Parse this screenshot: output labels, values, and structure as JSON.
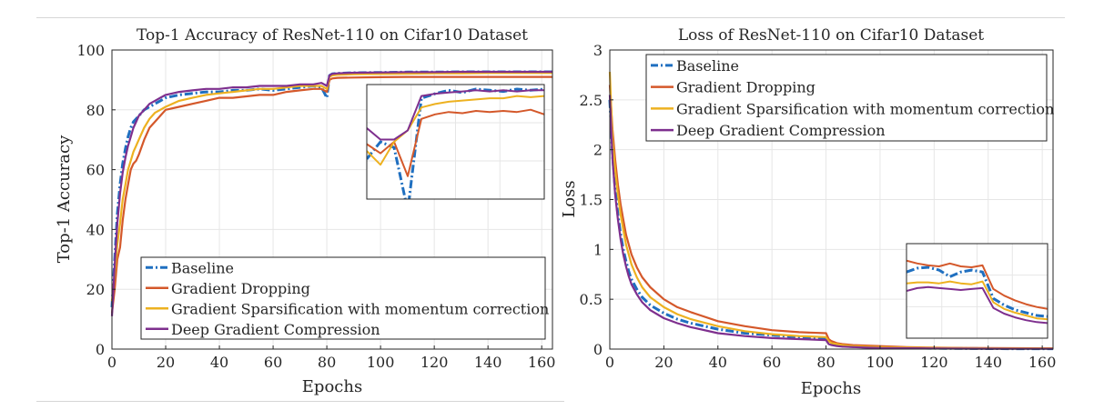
{
  "chart_data": [
    {
      "type": "line",
      "title": "Top-1 Accuracy of ResNet-110 on Cifar10 Dataset",
      "xlabel": "Epochs",
      "ylabel": "Top-1 Accuracy",
      "xlim": [
        0,
        164
      ],
      "ylim": [
        0,
        100
      ],
      "xticks": [
        "0",
        "20",
        "40",
        "60",
        "80",
        "100",
        "120",
        "140",
        "160"
      ],
      "yticks": [
        "0",
        "20",
        "40",
        "60",
        "80",
        "100"
      ],
      "grid": true,
      "legend_position": "bottom-right",
      "inset": true,
      "series": [
        {
          "name": "Baseline",
          "color": "#1f6fc0",
          "dash": true,
          "x": [
            0,
            1,
            2,
            3,
            4,
            5,
            6,
            7,
            8,
            9,
            10,
            12,
            14,
            16,
            18,
            20,
            25,
            30,
            35,
            40,
            45,
            50,
            55,
            60,
            65,
            70,
            75,
            78,
            80,
            81,
            82,
            84,
            90,
            100,
            110,
            120,
            130,
            140,
            150,
            160,
            164
          ],
          "y": [
            14,
            30,
            45,
            55,
            62,
            67,
            71,
            74,
            76,
            77,
            78,
            80,
            81,
            82,
            83,
            84,
            85,
            85.5,
            86,
            86,
            86.5,
            86.5,
            87,
            86.5,
            87,
            87.5,
            88,
            87.5,
            84,
            91.5,
            92,
            92.2,
            92.4,
            92.5,
            92.6,
            92.6,
            92.7,
            92.7,
            92.7,
            92.7,
            92.7
          ]
        },
        {
          "name": "Gradient Dropping",
          "color": "#d4582a",
          "dash": false,
          "x": [
            0,
            1,
            2,
            3,
            4,
            5,
            6,
            7,
            8,
            9,
            10,
            12,
            14,
            16,
            18,
            20,
            25,
            30,
            35,
            40,
            45,
            50,
            55,
            60,
            65,
            70,
            75,
            78,
            80,
            81,
            82,
            84,
            90,
            100,
            110,
            120,
            130,
            140,
            150,
            160,
            164
          ],
          "y": [
            12,
            20,
            30,
            34,
            43,
            50,
            55,
            60,
            62,
            63,
            65,
            70,
            74,
            76,
            78,
            80,
            81,
            82,
            83,
            84,
            84,
            84.5,
            85,
            85,
            86,
            86.5,
            87,
            87,
            86,
            90,
            90.5,
            90.7,
            90.8,
            90.9,
            91,
            91,
            91,
            91,
            91,
            91,
            91
          ]
        },
        {
          "name": "Gradient Sparsification with momentum correction",
          "color": "#edb120",
          "dash": false,
          "x": [
            0,
            1,
            2,
            3,
            4,
            5,
            6,
            7,
            8,
            9,
            10,
            12,
            14,
            16,
            18,
            20,
            25,
            30,
            35,
            40,
            45,
            50,
            55,
            60,
            65,
            70,
            75,
            78,
            80,
            81,
            82,
            84,
            90,
            100,
            110,
            120,
            130,
            140,
            150,
            160,
            164
          ],
          "y": [
            16,
            25,
            35,
            42,
            50,
            55,
            60,
            63,
            66,
            68,
            70,
            74,
            77,
            79,
            80,
            81,
            83,
            84,
            85,
            85.5,
            86,
            86.5,
            87,
            87,
            87.5,
            88,
            88,
            88,
            87,
            91,
            91.5,
            91.7,
            91.9,
            92,
            92.1,
            92.2,
            92.2,
            92.3,
            92.3,
            92.3,
            92.3
          ]
        },
        {
          "name": "Deep Gradient Compression",
          "color": "#7e2f8e",
          "dash": false,
          "x": [
            0,
            1,
            2,
            3,
            4,
            5,
            6,
            7,
            8,
            9,
            10,
            12,
            14,
            16,
            18,
            20,
            25,
            30,
            35,
            40,
            45,
            50,
            55,
            60,
            65,
            70,
            75,
            78,
            80,
            81,
            82,
            84,
            90,
            100,
            110,
            120,
            130,
            140,
            150,
            160,
            164
          ],
          "y": [
            11,
            28,
            42,
            52,
            59,
            64,
            68,
            71,
            74,
            76,
            78,
            80,
            82,
            83,
            84,
            85,
            86,
            86.5,
            87,
            87,
            87.5,
            87.5,
            88,
            88,
            88,
            88.5,
            88.5,
            89,
            88,
            91.5,
            92,
            92.2,
            92.4,
            92.5,
            92.6,
            92.6,
            92.7,
            92.7,
            92.7,
            92.7,
            92.7
          ]
        }
      ]
    },
    {
      "type": "line",
      "title": "Loss of ResNet-110 on Cifar10 Dataset",
      "xlabel": "Epochs",
      "ylabel": "Loss",
      "xlim": [
        0,
        164
      ],
      "ylim": [
        0,
        3
      ],
      "xticks": [
        "0",
        "20",
        "40",
        "60",
        "80",
        "100",
        "120",
        "140",
        "160"
      ],
      "yticks": [
        "0",
        "0.5",
        "1",
        "1.5",
        "2",
        "2.5",
        "3"
      ],
      "grid": true,
      "legend_position": "top-right",
      "inset": true,
      "series": [
        {
          "name": "Baseline",
          "color": "#1f6fc0",
          "dash": true,
          "x": [
            0,
            1,
            2,
            3,
            4,
            5,
            6,
            7,
            8,
            10,
            12,
            15,
            20,
            25,
            30,
            40,
            50,
            60,
            70,
            80,
            81,
            82,
            84,
            86,
            90,
            100,
            110,
            120,
            130,
            140,
            150,
            160,
            164
          ],
          "y": [
            2.5,
            1.95,
            1.6,
            1.35,
            1.15,
            1.0,
            0.88,
            0.78,
            0.7,
            0.6,
            0.52,
            0.44,
            0.36,
            0.3,
            0.26,
            0.2,
            0.16,
            0.14,
            0.12,
            0.11,
            0.07,
            0.05,
            0.04,
            0.03,
            0.025,
            0.015,
            0.01,
            0.008,
            0.006,
            0.005,
            0.004,
            0.004,
            0.004
          ]
        },
        {
          "name": "Gradient Dropping",
          "color": "#d4582a",
          "dash": false,
          "x": [
            0,
            1,
            2,
            3,
            4,
            5,
            6,
            7,
            8,
            10,
            12,
            15,
            20,
            25,
            30,
            40,
            50,
            60,
            70,
            80,
            81,
            82,
            84,
            86,
            90,
            100,
            110,
            120,
            130,
            140,
            150,
            160,
            164
          ],
          "y": [
            2.65,
            2.2,
            1.9,
            1.65,
            1.45,
            1.3,
            1.15,
            1.05,
            0.95,
            0.82,
            0.72,
            0.62,
            0.5,
            0.42,
            0.37,
            0.28,
            0.23,
            0.19,
            0.17,
            0.16,
            0.1,
            0.08,
            0.06,
            0.05,
            0.04,
            0.03,
            0.02,
            0.015,
            0.012,
            0.01,
            0.009,
            0.008,
            0.008
          ]
        },
        {
          "name": "Gradient Sparsification with momentum correction",
          "color": "#edb120",
          "dash": false,
          "x": [
            0,
            1,
            2,
            3,
            4,
            5,
            6,
            7,
            8,
            10,
            12,
            15,
            20,
            25,
            30,
            40,
            50,
            60,
            70,
            80,
            81,
            82,
            84,
            86,
            90,
            100,
            110,
            120,
            130,
            140,
            150,
            160,
            164
          ],
          "y": [
            2.78,
            2.1,
            1.8,
            1.55,
            1.35,
            1.2,
            1.05,
            0.95,
            0.85,
            0.72,
            0.62,
            0.52,
            0.42,
            0.35,
            0.3,
            0.23,
            0.18,
            0.15,
            0.13,
            0.12,
            0.08,
            0.06,
            0.05,
            0.04,
            0.03,
            0.02,
            0.015,
            0.012,
            0.009,
            0.007,
            0.006,
            0.006,
            0.006
          ]
        },
        {
          "name": "Deep Gradient Compression",
          "color": "#7e2f8e",
          "dash": false,
          "x": [
            0,
            1,
            2,
            3,
            4,
            5,
            6,
            7,
            8,
            10,
            12,
            15,
            20,
            25,
            30,
            40,
            50,
            60,
            70,
            80,
            81,
            82,
            84,
            86,
            90,
            100,
            110,
            120,
            130,
            140,
            150,
            160,
            164
          ],
          "y": [
            2.55,
            1.9,
            1.55,
            1.3,
            1.1,
            0.95,
            0.83,
            0.73,
            0.65,
            0.55,
            0.47,
            0.39,
            0.31,
            0.26,
            0.22,
            0.16,
            0.13,
            0.11,
            0.1,
            0.09,
            0.05,
            0.04,
            0.03,
            0.025,
            0.02,
            0.01,
            0.008,
            0.006,
            0.005,
            0.004,
            0.003,
            0.003,
            0.003
          ]
        }
      ]
    }
  ],
  "insets": [
    {
      "series": [
        {
          "color": "#1f6fc0",
          "dash": true,
          "y": [
            0.35,
            0.5,
            0.45,
            -0.1,
            0.88,
            0.92,
            0.95,
            0.93,
            0.96,
            0.95,
            0.94,
            0.96,
            0.95,
            0.96
          ]
        },
        {
          "color": "#d4582a",
          "dash": false,
          "y": [
            0.48,
            0.4,
            0.5,
            0.2,
            0.7,
            0.74,
            0.76,
            0.75,
            0.77,
            0.76,
            0.77,
            0.76,
            0.78,
            0.74
          ]
        },
        {
          "color": "#edb120",
          "dash": false,
          "y": [
            0.42,
            0.3,
            0.5,
            0.6,
            0.8,
            0.83,
            0.85,
            0.86,
            0.87,
            0.88,
            0.88,
            0.9,
            0.89,
            0.9
          ]
        },
        {
          "color": "#7e2f8e",
          "dash": false,
          "y": [
            0.62,
            0.52,
            0.52,
            0.6,
            0.9,
            0.92,
            0.93,
            0.94,
            0.95,
            0.94,
            0.95,
            0.94,
            0.95,
            0.95
          ]
        }
      ]
    },
    {
      "series": [
        {
          "color": "#1f6fc0",
          "dash": true,
          "y": [
            0.7,
            0.74,
            0.75,
            0.72,
            0.65,
            0.7,
            0.72,
            0.7,
            0.42,
            0.35,
            0.3,
            0.27,
            0.24,
            0.23
          ]
        },
        {
          "color": "#d4582a",
          "dash": false,
          "y": [
            0.82,
            0.79,
            0.77,
            0.76,
            0.79,
            0.76,
            0.75,
            0.77,
            0.52,
            0.45,
            0.4,
            0.36,
            0.33,
            0.31
          ]
        },
        {
          "color": "#edb120",
          "dash": false,
          "y": [
            0.58,
            0.59,
            0.59,
            0.58,
            0.6,
            0.58,
            0.57,
            0.6,
            0.38,
            0.31,
            0.27,
            0.24,
            0.21,
            0.2
          ]
        },
        {
          "color": "#7e2f8e",
          "dash": false,
          "y": [
            0.5,
            0.53,
            0.54,
            0.53,
            0.52,
            0.51,
            0.52,
            0.53,
            0.32,
            0.26,
            0.22,
            0.19,
            0.17,
            0.16
          ]
        }
      ]
    }
  ]
}
